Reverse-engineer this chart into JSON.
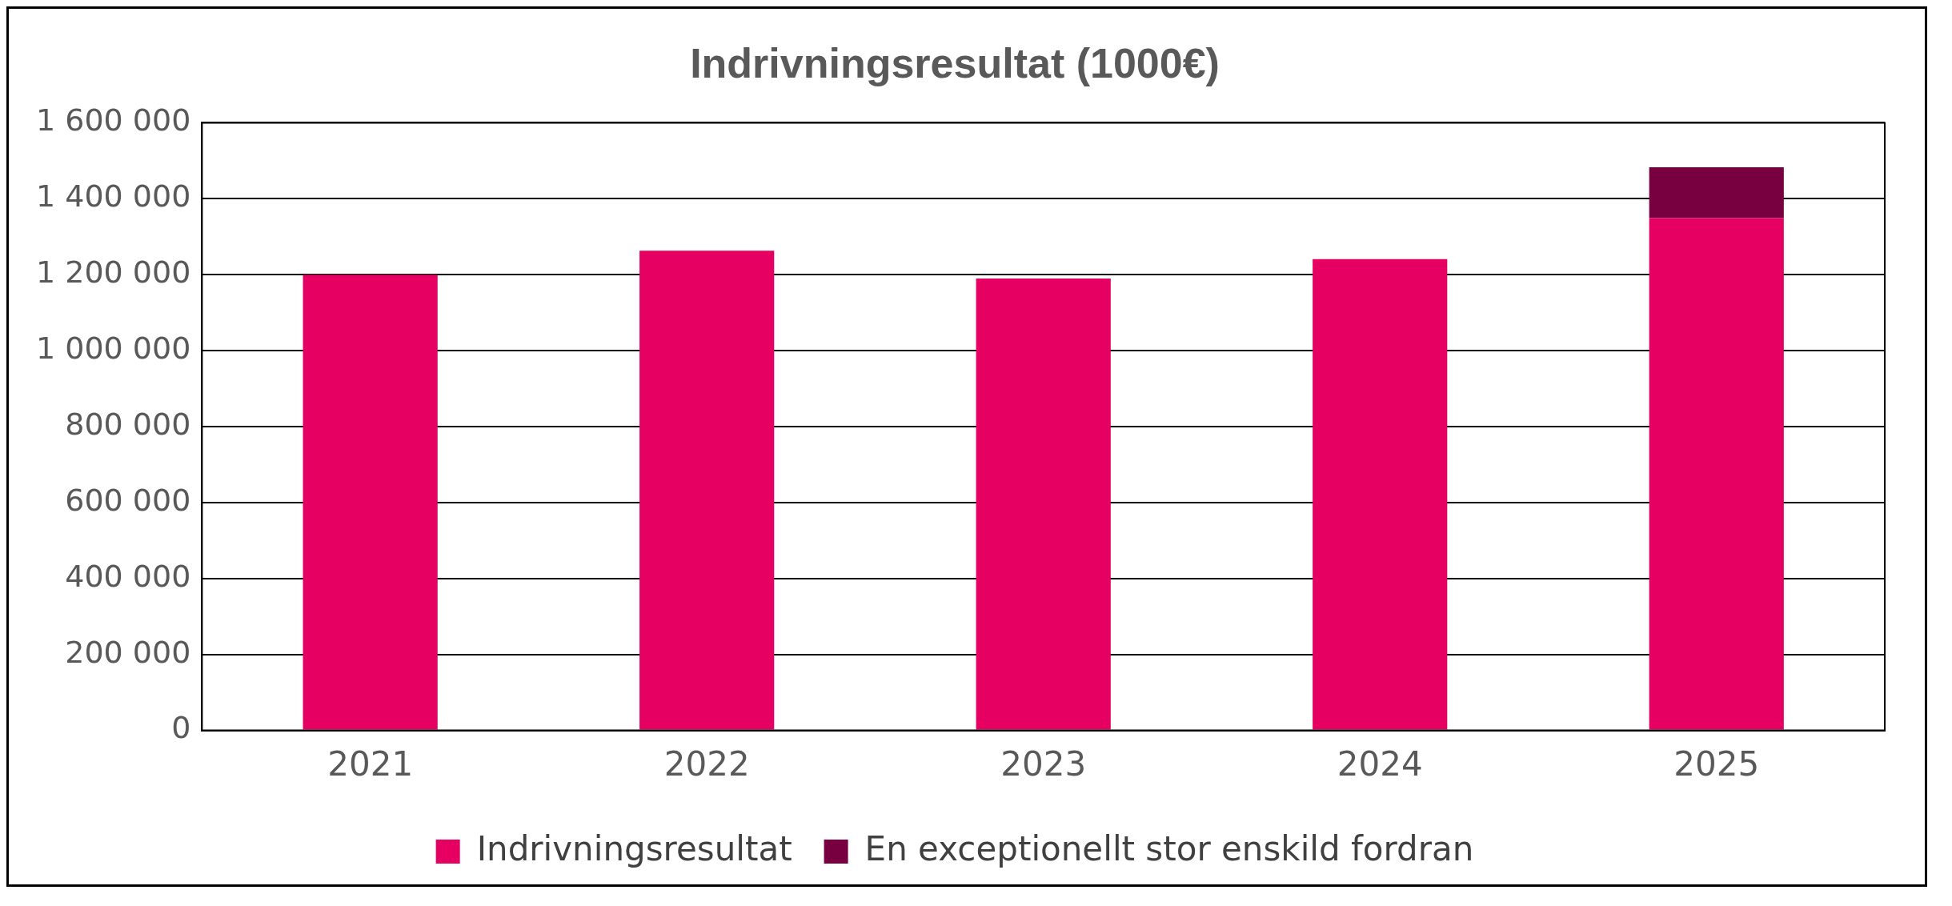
{
  "chart_data": {
    "type": "bar",
    "title": "Indrivningsresultat (1000€)",
    "categories": [
      "2021",
      "2022",
      "2023",
      "2024",
      "2025"
    ],
    "series": [
      {
        "name": "Indrivningsresultat",
        "color": "#e50062",
        "values": [
          1200000,
          1263000,
          1190000,
          1241000,
          1349000
        ]
      },
      {
        "name": "En exceptionellt stor enskild fordran",
        "color": "#780040",
        "values": [
          null,
          null,
          null,
          null,
          134000
        ]
      }
    ],
    "stacked": true,
    "ylim": [
      0,
      1600000
    ],
    "yticks": [
      {
        "value": 0,
        "label": "0"
      },
      {
        "value": 200000,
        "label": "200 000"
      },
      {
        "value": 400000,
        "label": "400 000"
      },
      {
        "value": 600000,
        "label": "600 000"
      },
      {
        "value": 800000,
        "label": "800 000"
      },
      {
        "value": 1000000,
        "label": "1 000 000"
      },
      {
        "value": 1200000,
        "label": "1 200 000"
      },
      {
        "value": 1400000,
        "label": "1 400 000"
      },
      {
        "value": 1600000,
        "label": "1 600 000"
      }
    ],
    "grid": "y",
    "legend": "bottom"
  }
}
